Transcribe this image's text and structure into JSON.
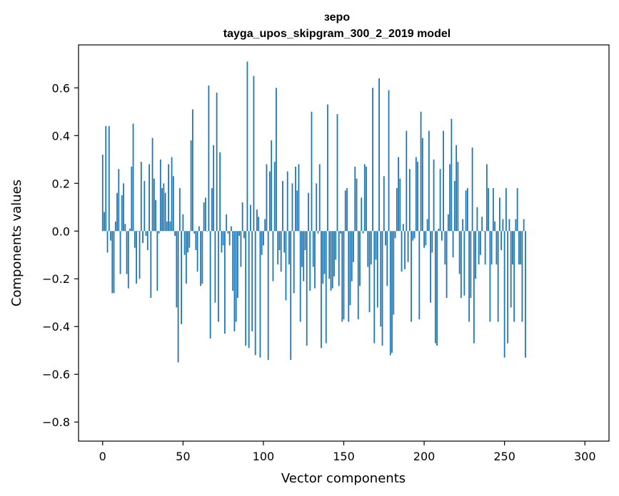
{
  "chart_data": {
    "type": "bar",
    "title": "зеро",
    "subtitle": "tayga_upos_skipgram_300_2_2019 model",
    "xlabel": "Vector components",
    "ylabel": "Components values",
    "xlim": [
      -15,
      315
    ],
    "ylim": [
      -0.88,
      0.78
    ],
    "xticks": [
      0,
      50,
      100,
      150,
      200,
      250,
      300
    ],
    "yticks": [
      -0.8,
      -0.6,
      -0.4,
      -0.2,
      0.0,
      0.2,
      0.4,
      0.6
    ],
    "ytick_labels": [
      "−0.8",
      "−0.6",
      "−0.4",
      "−0.2",
      "0.0",
      "0.2",
      "0.4",
      "0.6"
    ],
    "grid": false,
    "color": "#1f77b4",
    "x_start": 0,
    "values": [
      0.32,
      0.08,
      0.44,
      -0.09,
      0.44,
      -0.04,
      -0.26,
      -0.26,
      0.04,
      0.16,
      0.26,
      -0.18,
      0.15,
      0.2,
      0.03,
      -0.18,
      -0.24,
      0.01,
      0.27,
      0.45,
      -0.07,
      -0.22,
      0.0,
      -0.2,
      0.29,
      -0.05,
      0.21,
      -0.02,
      -0.08,
      0.28,
      -0.28,
      0.39,
      0.22,
      0.13,
      -0.25,
      -0.01,
      0.3,
      0.18,
      0.2,
      0.16,
      0.04,
      0.28,
      0.04,
      0.31,
      0.23,
      -0.02,
      -0.32,
      -0.55,
      0.18,
      -0.39,
      0.07,
      -0.1,
      -0.22,
      -0.09,
      -0.07,
      0.38,
      0.51,
      -0.01,
      -0.08,
      -0.17,
      0.02,
      -0.23,
      -0.22,
      0.12,
      0.14,
      0.0,
      0.61,
      -0.45,
      0.18,
      0.36,
      -0.3,
      0.58,
      -0.38,
      0.33,
      -0.09,
      -0.06,
      -0.43,
      0.07,
      -0.01,
      -0.06,
      0.02,
      -0.25,
      -0.42,
      -0.38,
      -0.28,
      -0.02,
      -0.15,
      0.12,
      -0.03,
      -0.48,
      0.71,
      -0.49,
      0.11,
      -0.42,
      0.65,
      -0.52,
      0.09,
      0.06,
      -0.53,
      -0.1,
      -0.06,
      0.05,
      0.28,
      -0.54,
      0.25,
      0.38,
      -0.21,
      0.29,
      0.6,
      -0.14,
      -0.08,
      -0.17,
      0.21,
      -0.09,
      -0.29,
      0.25,
      -0.14,
      -0.54,
      0.2,
      -0.26,
      0.27,
      0.17,
      0.28,
      -0.38,
      -0.15,
      -0.21,
      -0.08,
      -0.48,
      0.16,
      -0.25,
      0.5,
      -0.15,
      -0.24,
      0.2,
      -0.01,
      0.28,
      -0.49,
      -0.22,
      -0.18,
      -0.47,
      0.53,
      -0.2,
      -0.25,
      -0.24,
      -0.19,
      -0.12,
      0.49,
      -0.23,
      -0.01,
      -0.38,
      -0.37,
      0.17,
      0.18,
      -0.38,
      -0.31,
      -0.21,
      -0.13,
      0.27,
      0.22,
      -0.37,
      -0.23,
      0.14,
      -0.01,
      0.28,
      0.27,
      -0.15,
      -0.34,
      -0.14,
      0.6,
      -0.47,
      -0.12,
      -0.32,
      0.64,
      -0.4,
      -0.48,
      0.23,
      -0.06,
      -0.23,
      0.59,
      -0.52,
      -0.51,
      -0.35,
      -0.03,
      0.18,
      0.31,
      0.22,
      -0.17,
      0.03,
      -0.16,
      0.42,
      -0.13,
      0.26,
      -0.38,
      -0.04,
      -0.03,
      0.31,
      0.29,
      -0.37,
      0.5,
      0.39,
      -0.07,
      -0.06,
      0.05,
      0.42,
      -0.3,
      -0.09,
      0.3,
      -0.47,
      -0.48,
      0.01,
      0.26,
      -0.04,
      0.42,
      -0.14,
      -0.28,
      0.07,
      0.28,
      0.47,
      -0.11,
      0.21,
      0.36,
      0.29,
      -0.18,
      -0.28,
      0.05,
      -0.27,
      0.17,
      0.18,
      -0.38,
      -0.28,
      0.35,
      -0.47,
      -0.2,
      0.1,
      -0.14,
      -0.1,
      0.06,
      0.0,
      -0.14,
      0.28,
      0.18,
      -0.38,
      -0.14,
      0.18,
      0.04,
      -0.14,
      -0.38,
      0.14,
      -0.08,
      0.05,
      -0.53,
      0.18,
      -0.47,
      0.05,
      -0.32,
      -0.14,
      -0.38,
      0.05,
      0.18,
      -0.14,
      -0.14,
      -0.38,
      0.05,
      -0.53
    ]
  }
}
